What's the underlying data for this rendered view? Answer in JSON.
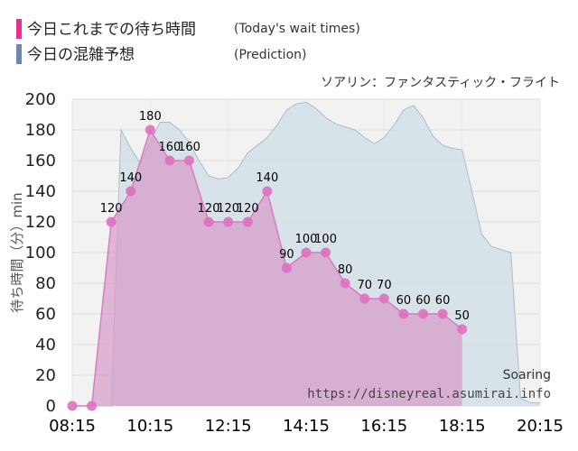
{
  "legend": [
    {
      "title": "今日これまでの待ち時間",
      "sub": "(Today's wait times)",
      "color": "#e8318f"
    },
    {
      "title": "今日の混雑予想",
      "sub": "(Prediction)",
      "color": "#6c85b1"
    }
  ],
  "attraction": "ソアリン：ファンタスティック・フライト",
  "watermark": {
    "name": "Soaring",
    "url": "https://disneyreal.asumirai.info"
  },
  "chart_data": {
    "type": "area",
    "ylabel": "待ち時間（分）min",
    "ylim": [
      0,
      200
    ],
    "yticks": [
      "0",
      "20",
      "40",
      "60",
      "80",
      "100",
      "120",
      "140",
      "160",
      "180",
      "200"
    ],
    "xticks": [
      "08:15",
      "10:15",
      "12:15",
      "14:15",
      "16:15",
      "18:15",
      "20:15"
    ],
    "x_range_minutes": [
      495,
      1215
    ],
    "grid": true,
    "series": [
      {
        "role": "wait",
        "color": "#e8318f",
        "x": [
          "08:15",
          "08:45",
          "09:15",
          "09:45",
          "10:15",
          "10:45",
          "11:15",
          "11:45",
          "12:15",
          "12:45",
          "13:15",
          "13:45",
          "14:15",
          "14:45",
          "15:15",
          "15:45",
          "16:15",
          "16:45",
          "17:15",
          "17:45",
          "18:15"
        ],
        "values": [
          0,
          0,
          120,
          140,
          180,
          160,
          160,
          120,
          120,
          120,
          140,
          90,
          100,
          100,
          80,
          70,
          70,
          60,
          60,
          60,
          50
        ],
        "labels": [
          "",
          "",
          "120",
          "140",
          "180",
          "160",
          "160",
          "120",
          "120",
          "120",
          "140",
          "90",
          "100",
          "100",
          "80",
          "70",
          "70",
          "60",
          "60",
          "60",
          "50"
        ]
      },
      {
        "role": "prediction",
        "color": "#6c85b1",
        "x": [
          "08:15",
          "09:15",
          "09:30",
          "09:45",
          "10:00",
          "10:15",
          "10:30",
          "10:45",
          "11:00",
          "11:15",
          "11:30",
          "11:45",
          "12:00",
          "12:15",
          "12:30",
          "12:45",
          "13:00",
          "13:15",
          "13:30",
          "13:45",
          "14:00",
          "14:15",
          "14:30",
          "14:45",
          "15:00",
          "15:15",
          "15:30",
          "15:45",
          "16:00",
          "16:15",
          "16:30",
          "16:45",
          "17:00",
          "17:15",
          "17:30",
          "17:45",
          "18:00",
          "18:15",
          "18:30",
          "18:45",
          "19:00",
          "19:15",
          "19:30",
          "19:45",
          "20:00",
          "20:15"
        ],
        "values": [
          0,
          0,
          180,
          168,
          158,
          172,
          185,
          185,
          180,
          172,
          160,
          150,
          148,
          149,
          155,
          165,
          170,
          175,
          183,
          193,
          197,
          198,
          194,
          188,
          184,
          182,
          180,
          175,
          171,
          175,
          183,
          193,
          196,
          188,
          176,
          170,
          168,
          167,
          140,
          112,
          104,
          102,
          100,
          5,
          2,
          2
        ]
      }
    ]
  }
}
